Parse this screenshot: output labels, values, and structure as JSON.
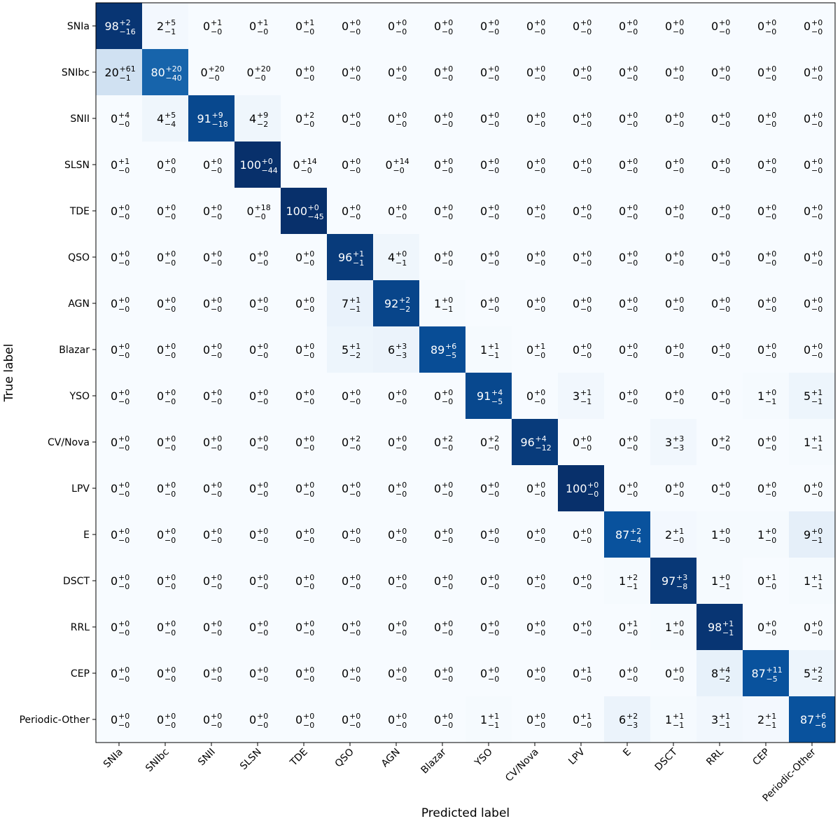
{
  "chart_data": {
    "type": "heatmap",
    "title": "",
    "xlabel": "Predicted label",
    "ylabel": "True label",
    "labels": [
      "SNIa",
      "SNIbc",
      "SNII",
      "SLSN",
      "TDE",
      "QSO",
      "AGN",
      "Blazar",
      "YSO",
      "CV/Nova",
      "LPV",
      "E",
      "DSCT",
      "RRL",
      "CEP",
      "Periodic-Other"
    ],
    "colormap": "Blues",
    "vmin": 0,
    "vmax": 100,
    "cells": [
      [
        [
          98,
          2,
          16
        ],
        [
          2,
          5,
          1
        ],
        [
          0,
          1,
          0
        ],
        [
          0,
          1,
          0
        ],
        [
          0,
          1,
          0
        ],
        [
          0,
          0,
          0
        ],
        [
          0,
          0,
          0
        ],
        [
          0,
          0,
          0
        ],
        [
          0,
          0,
          0
        ],
        [
          0,
          0,
          0
        ],
        [
          0,
          0,
          0
        ],
        [
          0,
          0,
          0
        ],
        [
          0,
          0,
          0
        ],
        [
          0,
          0,
          0
        ],
        [
          0,
          0,
          0
        ],
        [
          0,
          0,
          0
        ]
      ],
      [
        [
          20,
          61,
          1
        ],
        [
          80,
          20,
          40
        ],
        [
          0,
          20,
          0
        ],
        [
          0,
          20,
          0
        ],
        [
          0,
          0,
          0
        ],
        [
          0,
          0,
          0
        ],
        [
          0,
          0,
          0
        ],
        [
          0,
          0,
          0
        ],
        [
          0,
          0,
          0
        ],
        [
          0,
          0,
          0
        ],
        [
          0,
          0,
          0
        ],
        [
          0,
          0,
          0
        ],
        [
          0,
          0,
          0
        ],
        [
          0,
          0,
          0
        ],
        [
          0,
          0,
          0
        ],
        [
          0,
          0,
          0
        ]
      ],
      [
        [
          0,
          4,
          0
        ],
        [
          4,
          5,
          4
        ],
        [
          91,
          9,
          18
        ],
        [
          4,
          9,
          2
        ],
        [
          0,
          2,
          0
        ],
        [
          0,
          0,
          0
        ],
        [
          0,
          0,
          0
        ],
        [
          0,
          0,
          0
        ],
        [
          0,
          0,
          0
        ],
        [
          0,
          0,
          0
        ],
        [
          0,
          0,
          0
        ],
        [
          0,
          0,
          0
        ],
        [
          0,
          0,
          0
        ],
        [
          0,
          0,
          0
        ],
        [
          0,
          0,
          0
        ],
        [
          0,
          0,
          0
        ]
      ],
      [
        [
          0,
          1,
          0
        ],
        [
          0,
          0,
          0
        ],
        [
          0,
          0,
          0
        ],
        [
          100,
          0,
          44
        ],
        [
          0,
          14,
          0
        ],
        [
          0,
          0,
          0
        ],
        [
          0,
          14,
          0
        ],
        [
          0,
          0,
          0
        ],
        [
          0,
          0,
          0
        ],
        [
          0,
          0,
          0
        ],
        [
          0,
          0,
          0
        ],
        [
          0,
          0,
          0
        ],
        [
          0,
          0,
          0
        ],
        [
          0,
          0,
          0
        ],
        [
          0,
          0,
          0
        ],
        [
          0,
          0,
          0
        ]
      ],
      [
        [
          0,
          0,
          0
        ],
        [
          0,
          0,
          0
        ],
        [
          0,
          0,
          0
        ],
        [
          0,
          18,
          0
        ],
        [
          100,
          0,
          45
        ],
        [
          0,
          0,
          0
        ],
        [
          0,
          0,
          0
        ],
        [
          0,
          0,
          0
        ],
        [
          0,
          0,
          0
        ],
        [
          0,
          0,
          0
        ],
        [
          0,
          0,
          0
        ],
        [
          0,
          0,
          0
        ],
        [
          0,
          0,
          0
        ],
        [
          0,
          0,
          0
        ],
        [
          0,
          0,
          0
        ],
        [
          0,
          0,
          0
        ]
      ],
      [
        [
          0,
          0,
          0
        ],
        [
          0,
          0,
          0
        ],
        [
          0,
          0,
          0
        ],
        [
          0,
          0,
          0
        ],
        [
          0,
          0,
          0
        ],
        [
          96,
          1,
          1
        ],
        [
          4,
          0,
          1
        ],
        [
          0,
          0,
          0
        ],
        [
          0,
          0,
          0
        ],
        [
          0,
          0,
          0
        ],
        [
          0,
          0,
          0
        ],
        [
          0,
          0,
          0
        ],
        [
          0,
          0,
          0
        ],
        [
          0,
          0,
          0
        ],
        [
          0,
          0,
          0
        ],
        [
          0,
          0,
          0
        ]
      ],
      [
        [
          0,
          0,
          0
        ],
        [
          0,
          0,
          0
        ],
        [
          0,
          0,
          0
        ],
        [
          0,
          0,
          0
        ],
        [
          0,
          0,
          0
        ],
        [
          7,
          1,
          1
        ],
        [
          92,
          2,
          2
        ],
        [
          1,
          0,
          1
        ],
        [
          0,
          0,
          0
        ],
        [
          0,
          0,
          0
        ],
        [
          0,
          0,
          0
        ],
        [
          0,
          0,
          0
        ],
        [
          0,
          0,
          0
        ],
        [
          0,
          0,
          0
        ],
        [
          0,
          0,
          0
        ],
        [
          0,
          0,
          0
        ]
      ],
      [
        [
          0,
          0,
          0
        ],
        [
          0,
          0,
          0
        ],
        [
          0,
          0,
          0
        ],
        [
          0,
          0,
          0
        ],
        [
          0,
          0,
          0
        ],
        [
          5,
          1,
          2
        ],
        [
          6,
          3,
          3
        ],
        [
          89,
          6,
          5
        ],
        [
          1,
          1,
          1
        ],
        [
          0,
          1,
          0
        ],
        [
          0,
          0,
          0
        ],
        [
          0,
          0,
          0
        ],
        [
          0,
          0,
          0
        ],
        [
          0,
          0,
          0
        ],
        [
          0,
          0,
          0
        ],
        [
          0,
          0,
          0
        ]
      ],
      [
        [
          0,
          0,
          0
        ],
        [
          0,
          0,
          0
        ],
        [
          0,
          0,
          0
        ],
        [
          0,
          0,
          0
        ],
        [
          0,
          0,
          0
        ],
        [
          0,
          0,
          0
        ],
        [
          0,
          0,
          0
        ],
        [
          0,
          0,
          0
        ],
        [
          91,
          4,
          5
        ],
        [
          0,
          0,
          0
        ],
        [
          3,
          1,
          1
        ],
        [
          0,
          0,
          0
        ],
        [
          0,
          0,
          0
        ],
        [
          0,
          0,
          0
        ],
        [
          1,
          0,
          1
        ],
        [
          5,
          1,
          1
        ]
      ],
      [
        [
          0,
          0,
          0
        ],
        [
          0,
          0,
          0
        ],
        [
          0,
          0,
          0
        ],
        [
          0,
          0,
          0
        ],
        [
          0,
          0,
          0
        ],
        [
          0,
          2,
          0
        ],
        [
          0,
          0,
          0
        ],
        [
          0,
          2,
          0
        ],
        [
          0,
          2,
          0
        ],
        [
          96,
          4,
          12
        ],
        [
          0,
          0,
          0
        ],
        [
          0,
          0,
          0
        ],
        [
          3,
          3,
          3
        ],
        [
          0,
          2,
          0
        ],
        [
          0,
          0,
          0
        ],
        [
          1,
          1,
          1
        ]
      ],
      [
        [
          0,
          0,
          0
        ],
        [
          0,
          0,
          0
        ],
        [
          0,
          0,
          0
        ],
        [
          0,
          0,
          0
        ],
        [
          0,
          0,
          0
        ],
        [
          0,
          0,
          0
        ],
        [
          0,
          0,
          0
        ],
        [
          0,
          0,
          0
        ],
        [
          0,
          0,
          0
        ],
        [
          0,
          0,
          0
        ],
        [
          100,
          0,
          0
        ],
        [
          0,
          0,
          0
        ],
        [
          0,
          0,
          0
        ],
        [
          0,
          0,
          0
        ],
        [
          0,
          0,
          0
        ],
        [
          0,
          0,
          0
        ]
      ],
      [
        [
          0,
          0,
          0
        ],
        [
          0,
          0,
          0
        ],
        [
          0,
          0,
          0
        ],
        [
          0,
          0,
          0
        ],
        [
          0,
          0,
          0
        ],
        [
          0,
          0,
          0
        ],
        [
          0,
          0,
          0
        ],
        [
          0,
          0,
          0
        ],
        [
          0,
          0,
          0
        ],
        [
          0,
          0,
          0
        ],
        [
          0,
          0,
          0
        ],
        [
          87,
          2,
          4
        ],
        [
          2,
          1,
          0
        ],
        [
          1,
          0,
          0
        ],
        [
          1,
          0,
          0
        ],
        [
          9,
          0,
          1
        ]
      ],
      [
        [
          0,
          0,
          0
        ],
        [
          0,
          0,
          0
        ],
        [
          0,
          0,
          0
        ],
        [
          0,
          0,
          0
        ],
        [
          0,
          0,
          0
        ],
        [
          0,
          0,
          0
        ],
        [
          0,
          0,
          0
        ],
        [
          0,
          0,
          0
        ],
        [
          0,
          0,
          0
        ],
        [
          0,
          0,
          0
        ],
        [
          0,
          0,
          0
        ],
        [
          1,
          2,
          1
        ],
        [
          97,
          3,
          8
        ],
        [
          1,
          0,
          1
        ],
        [
          0,
          1,
          0
        ],
        [
          1,
          1,
          1
        ]
      ],
      [
        [
          0,
          0,
          0
        ],
        [
          0,
          0,
          0
        ],
        [
          0,
          0,
          0
        ],
        [
          0,
          0,
          0
        ],
        [
          0,
          0,
          0
        ],
        [
          0,
          0,
          0
        ],
        [
          0,
          0,
          0
        ],
        [
          0,
          0,
          0
        ],
        [
          0,
          0,
          0
        ],
        [
          0,
          0,
          0
        ],
        [
          0,
          0,
          0
        ],
        [
          0,
          1,
          0
        ],
        [
          1,
          0,
          0
        ],
        [
          98,
          1,
          1
        ],
        [
          0,
          0,
          0
        ],
        [
          0,
          0,
          0
        ]
      ],
      [
        [
          0,
          0,
          0
        ],
        [
          0,
          0,
          0
        ],
        [
          0,
          0,
          0
        ],
        [
          0,
          0,
          0
        ],
        [
          0,
          0,
          0
        ],
        [
          0,
          0,
          0
        ],
        [
          0,
          0,
          0
        ],
        [
          0,
          0,
          0
        ],
        [
          0,
          0,
          0
        ],
        [
          0,
          0,
          0
        ],
        [
          0,
          1,
          0
        ],
        [
          0,
          0,
          0
        ],
        [
          0,
          0,
          0
        ],
        [
          8,
          4,
          2
        ],
        [
          87,
          11,
          5
        ],
        [
          5,
          2,
          2
        ]
      ],
      [
        [
          0,
          0,
          0
        ],
        [
          0,
          0,
          0
        ],
        [
          0,
          0,
          0
        ],
        [
          0,
          0,
          0
        ],
        [
          0,
          0,
          0
        ],
        [
          0,
          0,
          0
        ],
        [
          0,
          0,
          0
        ],
        [
          0,
          0,
          0
        ],
        [
          1,
          1,
          1
        ],
        [
          0,
          0,
          0
        ],
        [
          0,
          1,
          0
        ],
        [
          6,
          2,
          3
        ],
        [
          1,
          1,
          1
        ],
        [
          3,
          1,
          1
        ],
        [
          2,
          1,
          1
        ],
        [
          87,
          6,
          6
        ]
      ]
    ]
  }
}
